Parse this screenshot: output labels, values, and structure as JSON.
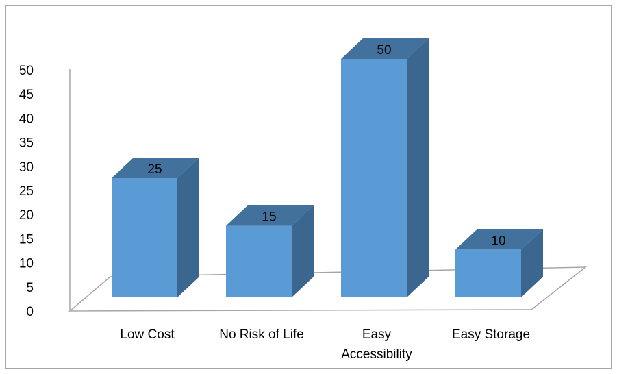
{
  "chart_data": {
    "type": "bar",
    "style": "3d-column",
    "title": "",
    "xlabel": "",
    "ylabel": "",
    "categories": [
      "Low Cost",
      "No Risk of Life",
      "Easy Accessibility",
      "Easy Storage"
    ],
    "values": [
      25,
      15,
      50,
      10
    ],
    "data_labels": [
      "25",
      "15",
      "50",
      "10"
    ],
    "ylim": [
      0,
      50
    ],
    "yticks": [
      "0",
      "5",
      "10",
      "15",
      "20",
      "25",
      "30",
      "35",
      "40",
      "45",
      "50"
    ],
    "grid": false,
    "legend": "none",
    "colors": {
      "bar_front": "#5B9BD5",
      "bar_side": "#3A6690",
      "bar_top": "#41719C",
      "axis": "#A6A6A6",
      "border": "#A6A6A6"
    }
  }
}
